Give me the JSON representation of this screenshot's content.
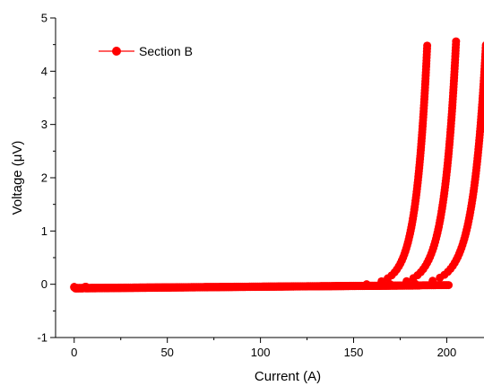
{
  "chart_data": {
    "type": "scatter",
    "xlabel": "Current (A)",
    "ylabel": "Voltage (μV)",
    "xlim": [
      -10,
      220
    ],
    "ylim": [
      -1,
      5
    ],
    "xticks": [
      0,
      50,
      100,
      150,
      200
    ],
    "yticks": [
      -1,
      0,
      1,
      2,
      3,
      4,
      5
    ],
    "legend": {
      "position": "top-left"
    },
    "grid": false,
    "marker_color": "#ff0000",
    "series": [
      {
        "name": "Section B",
        "curves": [
          {
            "I0": 0,
            "Ic": 189.5,
            "Vmax": 4.5,
            "baseline_start": -0.08,
            "baseline_end": -0.02,
            "width": 6
          },
          {
            "I0": 0,
            "Ic": 205.0,
            "Vmax": 4.58,
            "baseline_start": -0.07,
            "baseline_end": -0.02,
            "width": 6.5
          },
          {
            "I0": 0,
            "Ic": 221.0,
            "Vmax": 4.5,
            "baseline_start": -0.07,
            "baseline_end": -0.01,
            "width": 7
          }
        ]
      }
    ]
  }
}
